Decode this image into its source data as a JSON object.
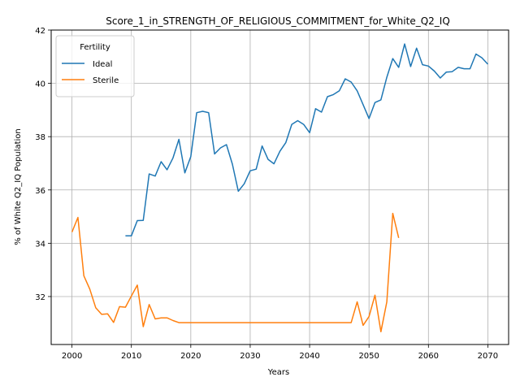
{
  "chart_data": {
    "type": "line",
    "title": "Score_1_in_STRENGTH_OF_RELIGIOUS_COMMITMENT_for_White_Q2_IQ",
    "xlabel": "Years",
    "ylabel": "% of White Q2_IQ Population",
    "xlim": [
      1996.5,
      2073.5
    ],
    "ylim": [
      30.2,
      42.0
    ],
    "xticks": [
      2000,
      2010,
      2020,
      2030,
      2040,
      2050,
      2060,
      2070
    ],
    "yticks": [
      32,
      34,
      36,
      38,
      40,
      42
    ],
    "grid": true,
    "legend": {
      "title": "Fertility",
      "placement": "top-left"
    },
    "colors": {
      "Ideal": "#1f77b4",
      "Sterile": "#ff7f0e"
    },
    "series": [
      {
        "name": "Ideal",
        "x": [
          2009,
          2010,
          2011,
          2012,
          2013,
          2014,
          2015,
          2016,
          2017,
          2018,
          2019,
          2020,
          2021,
          2022,
          2023,
          2024,
          2025,
          2026,
          2027,
          2028,
          2029,
          2030,
          2031,
          2032,
          2033,
          2034,
          2035,
          2036,
          2037,
          2038,
          2039,
          2040,
          2041,
          2042,
          2043,
          2044,
          2045,
          2046,
          2047,
          2048,
          2049,
          2050,
          2051,
          2052,
          2053,
          2054,
          2055,
          2056,
          2057,
          2058,
          2059,
          2060,
          2061,
          2062,
          2063,
          2064,
          2065,
          2066,
          2067,
          2068,
          2069,
          2070
        ],
        "values": [
          34.28,
          34.28,
          34.85,
          34.86,
          36.6,
          36.52,
          37.06,
          36.76,
          37.2,
          37.9,
          36.64,
          37.25,
          38.9,
          38.95,
          38.9,
          37.35,
          37.58,
          37.7,
          36.97,
          35.95,
          36.23,
          36.72,
          36.78,
          37.65,
          37.15,
          36.98,
          37.45,
          37.78,
          38.46,
          38.6,
          38.46,
          38.15,
          39.05,
          38.92,
          39.5,
          39.58,
          39.72,
          40.17,
          40.05,
          39.72,
          39.2,
          38.68,
          39.28,
          39.38,
          40.23,
          40.93,
          40.6,
          41.48,
          40.63,
          41.32,
          40.7,
          40.65,
          40.46,
          40.2,
          40.42,
          40.44,
          40.6,
          40.55,
          40.55,
          41.1,
          40.96,
          40.72
        ]
      },
      {
        "name": "Sterile",
        "x": [
          2000,
          2001,
          2002,
          2003,
          2004,
          2005,
          2006,
          2007,
          2008,
          2009,
          2010,
          2011,
          2012,
          2013,
          2014,
          2015,
          2016,
          2017,
          2018,
          2019,
          2020,
          2021,
          2022,
          2023,
          2024,
          2025,
          2026,
          2027,
          2028,
          2029,
          2030,
          2031,
          2032,
          2033,
          2034,
          2035,
          2036,
          2037,
          2038,
          2039,
          2040,
          2041,
          2042,
          2043,
          2044,
          2045,
          2046,
          2047,
          2048,
          2049,
          2050,
          2051,
          2052,
          2053,
          2054,
          2055
        ],
        "values": [
          34.42,
          34.97,
          32.78,
          32.28,
          31.58,
          31.33,
          31.35,
          31.03,
          31.62,
          31.6,
          32.02,
          32.43,
          30.87,
          31.7,
          31.16,
          31.2,
          31.2,
          31.1,
          31.02,
          31.02,
          31.02,
          31.02,
          31.02,
          31.02,
          31.02,
          31.02,
          31.02,
          31.02,
          31.02,
          31.02,
          31.02,
          31.02,
          31.02,
          31.02,
          31.02,
          31.02,
          31.02,
          31.02,
          31.02,
          31.02,
          31.02,
          31.02,
          31.02,
          31.02,
          31.02,
          31.02,
          31.02,
          31.02,
          31.8,
          30.92,
          31.25,
          32.05,
          30.68,
          31.8,
          35.12,
          34.2
        ]
      }
    ]
  }
}
